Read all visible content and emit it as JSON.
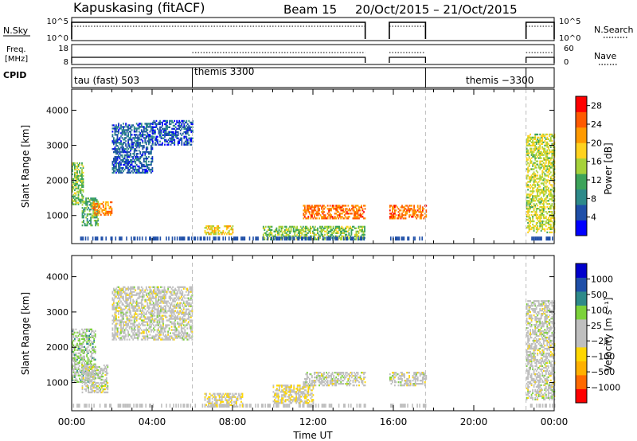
{
  "header": {
    "station": "Kapuskasing (fitACF)",
    "beam": "Beam 15",
    "dates": "20/Oct/2015 – 21/Oct/2015"
  },
  "strips": {
    "nsky": {
      "label": "N.Sky",
      "ticks": [
        "10^5",
        "10^0"
      ],
      "right_ticks": [
        "10^5",
        "10^0"
      ],
      "right_label": "N.Search"
    },
    "freq": {
      "label1": "Freq.",
      "label2": "[MHz]",
      "ticks": [
        "18",
        "8"
      ],
      "right_ticks": [
        "60",
        "0"
      ],
      "right_label": "Nave"
    },
    "cpid": {
      "label": "CPID",
      "programs": [
        "tau (fast) 503",
        "themis 3300",
        "themis −3300"
      ]
    }
  },
  "time_axis": {
    "label": "Time UT",
    "ticks": [
      "00:00",
      "04:00",
      "08:00",
      "12:00",
      "16:00",
      "20:00",
      "00:00"
    ],
    "range_hours": [
      0,
      24
    ],
    "operating_intervals": [
      [
        0,
        14.6
      ],
      [
        15.8,
        17.6
      ],
      [
        22.6,
        24
      ]
    ],
    "mode_change_hours": [
      6.0,
      17.6,
      22.6
    ]
  },
  "colors": {
    "power_scale": [
      "#0000ff",
      "#1f4fa8",
      "#2e8a8a",
      "#3da35a",
      "#a6d23a",
      "#ffd21f",
      "#ff9a00",
      "#ff5a00",
      "#ff0000"
    ],
    "velocity_scale": [
      "#ff0000",
      "#ff6a00",
      "#ffb000",
      "#ffd700",
      "#bfbfbf",
      "#bfbfbf",
      "#7cd23a",
      "#2e8a8a",
      "#1f4fa8",
      "#0000cc"
    ]
  },
  "chart_data": [
    {
      "type": "heatmap",
      "title": "Power",
      "xlabel": "Time UT",
      "ylabel": "Slant Range [km]",
      "xlim": [
        0,
        24
      ],
      "ylim": [
        200,
        4600
      ],
      "y_ticks": [
        1000,
        2000,
        3000,
        4000
      ],
      "colorbar": {
        "label": "Power [dB]",
        "ticks": [
          4,
          8,
          12,
          16,
          20,
          24,
          28
        ],
        "range": [
          0,
          30
        ]
      },
      "echo_regions": [
        {
          "t": [
            0.0,
            0.6
          ],
          "range_km": [
            1300,
            2500
          ],
          "value": 14
        },
        {
          "t": [
            0.5,
            1.3
          ],
          "range_km": [
            700,
            1500
          ],
          "value": 12
        },
        {
          "t": [
            1.0,
            2.0
          ],
          "range_km": [
            1000,
            1400
          ],
          "value": 22
        },
        {
          "t": [
            2.0,
            4.0
          ],
          "range_km": [
            2200,
            3600
          ],
          "value": 6
        },
        {
          "t": [
            4.0,
            6.0
          ],
          "range_km": [
            3000,
            3700
          ],
          "value": 5
        },
        {
          "t": [
            6.6,
            8.0
          ],
          "range_km": [
            450,
            700
          ],
          "value": 18
        },
        {
          "t": [
            9.5,
            14.6
          ],
          "range_km": [
            300,
            700
          ],
          "value": 14
        },
        {
          "t": [
            11.5,
            14.6
          ],
          "range_km": [
            900,
            1300
          ],
          "value": 24
        },
        {
          "t": [
            15.8,
            17.6
          ],
          "range_km": [
            900,
            1300
          ],
          "value": 24
        },
        {
          "t": [
            22.6,
            24.0
          ],
          "range_km": [
            500,
            3300
          ],
          "value": 16
        }
      ]
    },
    {
      "type": "heatmap",
      "title": "Velocity",
      "xlabel": "Time UT",
      "ylabel": "Slant Range [km]",
      "xlim": [
        0,
        24
      ],
      "ylim": [
        200,
        4600
      ],
      "y_ticks": [
        1000,
        2000,
        3000,
        4000
      ],
      "colorbar": {
        "label": "Velocity [m s⁻¹]",
        "ticks": [
          1000,
          500,
          100,
          25,
          -25,
          -100,
          -500,
          -1000
        ],
        "range": [
          -1000,
          1000
        ]
      },
      "echo_regions": [
        {
          "t": [
            0.0,
            1.2
          ],
          "range_km": [
            1000,
            2500
          ],
          "value": 200
        },
        {
          "t": [
            0.5,
            1.8
          ],
          "range_km": [
            700,
            1500
          ],
          "value": 0
        },
        {
          "t": [
            2.0,
            6.0
          ],
          "range_km": [
            2200,
            3700
          ],
          "value": 0
        },
        {
          "t": [
            6.6,
            8.5
          ],
          "range_km": [
            300,
            700
          ],
          "value": -150
        },
        {
          "t": [
            10.0,
            12.0
          ],
          "range_km": [
            400,
            900
          ],
          "value": -150
        },
        {
          "t": [
            11.5,
            14.6
          ],
          "range_km": [
            900,
            1300
          ],
          "value": 0
        },
        {
          "t": [
            15.8,
            17.6
          ],
          "range_km": [
            900,
            1300
          ],
          "value": 0
        },
        {
          "t": [
            22.6,
            24.0
          ],
          "range_km": [
            500,
            3300
          ],
          "value": 0
        }
      ]
    }
  ]
}
